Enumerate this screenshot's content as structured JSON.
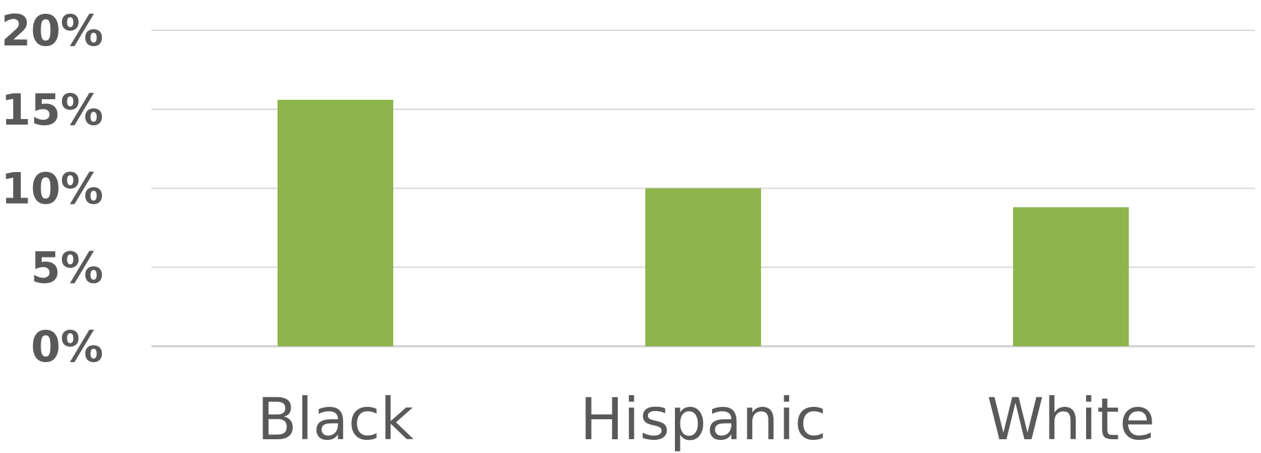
{
  "chart_data": {
    "type": "bar",
    "categories": [
      "Black",
      "Hispanic",
      "White"
    ],
    "values": [
      15.6,
      10.0,
      8.8
    ],
    "y_tick_labels": [
      "0%",
      "5%",
      "10%",
      "15%",
      "20%"
    ],
    "y_ticks": [
      0,
      5,
      10,
      15,
      20
    ],
    "ylim": [
      0,
      20
    ],
    "title": "",
    "xlabel": "",
    "ylabel": "",
    "grid": true,
    "legend": "none",
    "bar_color": "#8db54c",
    "text_color": "#595959",
    "grid_color": "#d9d9d9"
  }
}
